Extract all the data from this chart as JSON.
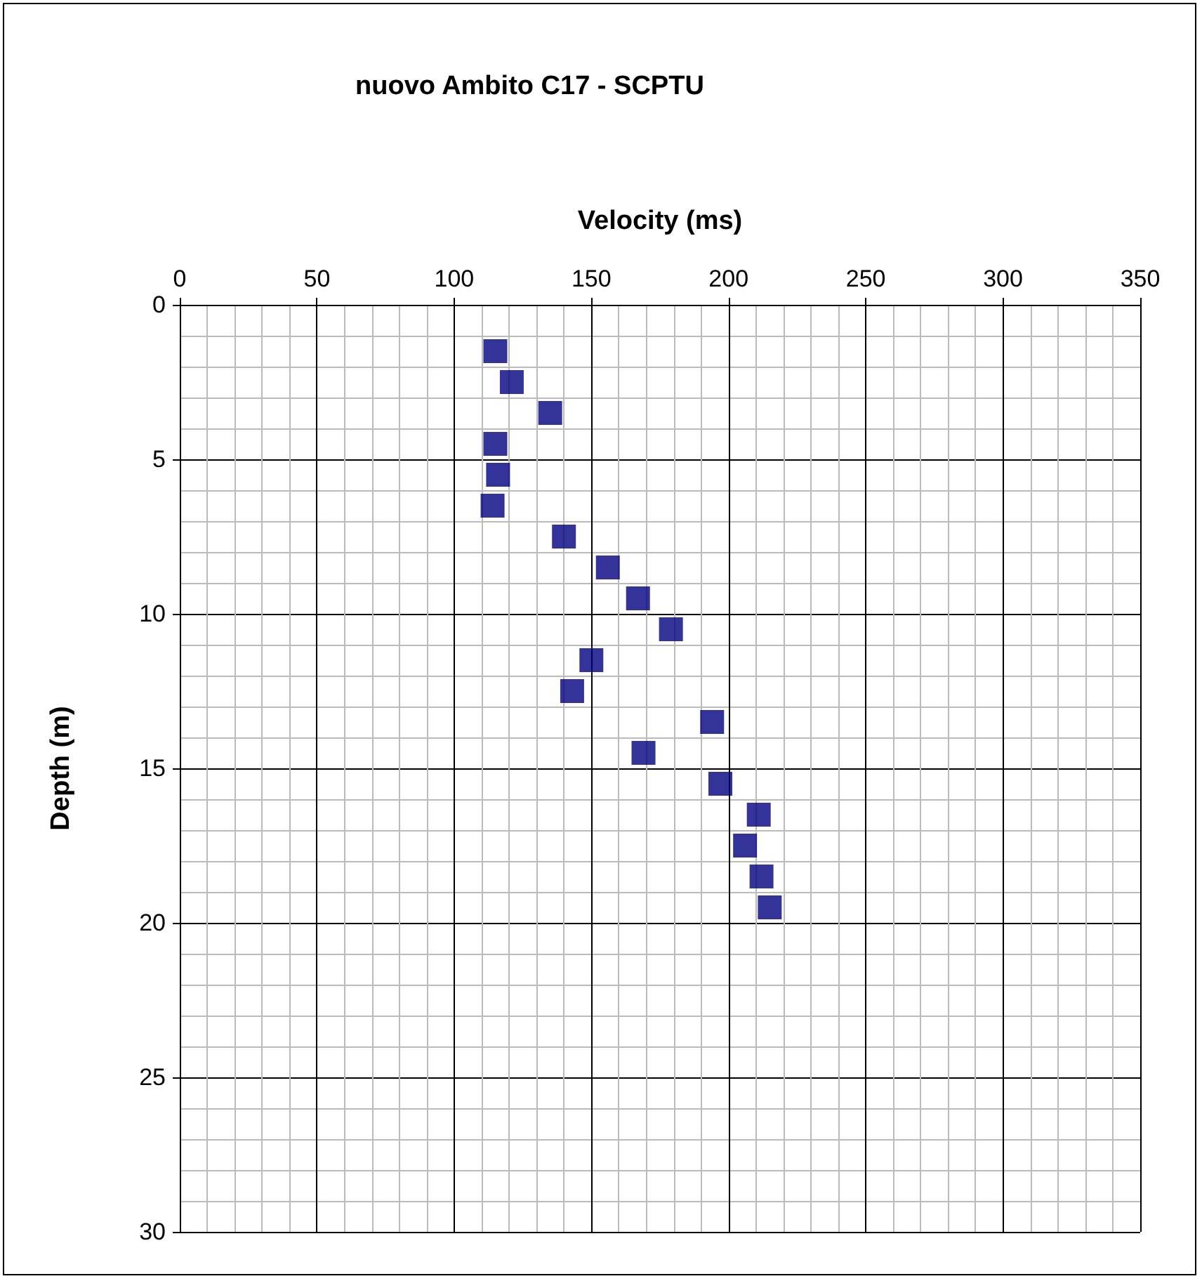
{
  "chart_data": {
    "type": "scatter",
    "title": "nuovo Ambito C17 - SCPTU",
    "xlabel": "Velocity (ms)",
    "ylabel": "Depth (m)",
    "x": [
      115,
      121,
      135,
      115,
      116,
      114,
      140,
      156,
      167,
      179,
      150,
      143,
      194,
      169,
      197,
      211,
      206,
      212,
      215
    ],
    "values": [
      1.5,
      2.5,
      3.5,
      4.5,
      5.5,
      6.5,
      7.5,
      8.5,
      9.5,
      10.5,
      11.5,
      12.5,
      13.5,
      14.5,
      15.5,
      16.5,
      17.5,
      18.5,
      19.5
    ],
    "color": "#000080",
    "marker": "square",
    "xlim": [
      0,
      350
    ],
    "xticks": [
      0,
      50,
      100,
      150,
      200,
      250,
      300,
      350
    ],
    "ylim": [
      30,
      0
    ],
    "yticks": [
      0,
      5,
      10,
      15,
      20,
      25,
      30
    ],
    "grid": true
  }
}
